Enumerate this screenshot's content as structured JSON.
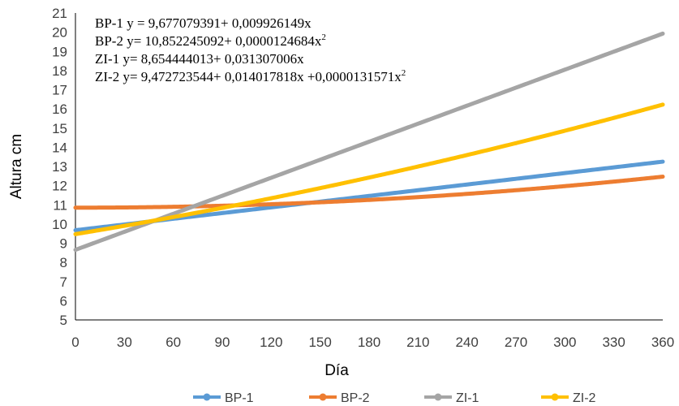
{
  "chart_data": {
    "type": "line",
    "xlabel": "Día",
    "ylabel": "Altura cm",
    "xlim": [
      0,
      360
    ],
    "ylim": [
      5,
      21
    ],
    "xticks": [
      "0",
      "30",
      "60",
      "90",
      "120",
      "150",
      "180",
      "210",
      "240",
      "270",
      "300",
      "330",
      "360"
    ],
    "yticks": [
      "5",
      "6",
      "7",
      "8",
      "9",
      "10",
      "11",
      "12",
      "13",
      "14",
      "15",
      "16",
      "17",
      "18",
      "19",
      "20",
      "21"
    ],
    "grid": false,
    "legend_position": "bottom",
    "equations": [
      {
        "text": "BP-1 y = 9,677079391+   0,009926149x",
        "sup": ""
      },
      {
        "text": "BP-2 y= 10,852245092+  0,0000124684x",
        "sup": "2"
      },
      {
        "text": "ZI-1 y= 8,654444013+  0,031307006x",
        "sup": ""
      },
      {
        "text": "ZI-2 y= 9,472723544+  0,014017818x  +0,0000131571x",
        "sup": "2"
      }
    ],
    "series": [
      {
        "name": "BP-1",
        "color": "#5B9BD5",
        "coef": [
          9.677079391,
          0.009926149,
          0
        ]
      },
      {
        "name": "BP-2",
        "color": "#ED7D31",
        "coef": [
          10.852245092,
          0,
          1.24684e-05
        ]
      },
      {
        "name": "ZI-1",
        "color": "#A5A5A5",
        "coef": [
          8.654444013,
          0.031307006,
          0
        ]
      },
      {
        "name": "ZI-2",
        "color": "#FFC000",
        "coef": [
          9.472723544,
          0.014017818,
          1.31571e-05
        ]
      }
    ]
  }
}
